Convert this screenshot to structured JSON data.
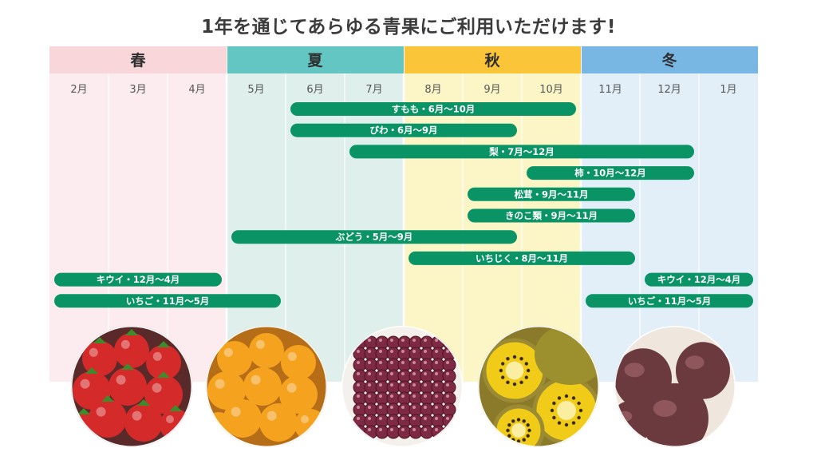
{
  "title": "1年を通じてあらゆる青果にご利用いただけます!",
  "chart_data": {
    "type": "gantt",
    "seasons": [
      {
        "name": "春",
        "months": [
          "2月",
          "3月",
          "4月"
        ],
        "header_color": "#f8d6d9",
        "column_color": "#fdecef"
      },
      {
        "name": "夏",
        "months": [
          "5月",
          "6月",
          "7月"
        ],
        "header_color": "#63c6c3",
        "column_color": "#dfefec"
      },
      {
        "name": "秋",
        "months": [
          "8月",
          "9月",
          "10月"
        ],
        "header_color": "#fbc53a",
        "column_color": "#fcf5c6"
      },
      {
        "name": "冬",
        "months": [
          "11月",
          "12月",
          "1月"
        ],
        "header_color": "#78b7e4",
        "column_color": "#e2eff9"
      }
    ],
    "bar_color": "#0a9466",
    "bars": [
      {
        "label": "すもも・6月〜10月",
        "start": "6月",
        "end": "10月"
      },
      {
        "label": "びわ・6月〜9月",
        "start": "6月",
        "end": "9月"
      },
      {
        "label": "梨・7月〜12月",
        "start": "7月",
        "end": "12月"
      },
      {
        "label": "柿・10月〜12月",
        "start": "10月",
        "end": "12月"
      },
      {
        "label": "松茸・9月〜11月",
        "start": "9月",
        "end": "11月"
      },
      {
        "label": "きのこ類・9月〜11月",
        "start": "9月",
        "end": "11月"
      },
      {
        "label": "ぶどう・5月〜9月",
        "start": "5月",
        "end": "9月"
      },
      {
        "label": "いちじく・8月〜11月",
        "start": "8月",
        "end": "11月"
      },
      {
        "label": "キウイ・12月〜4月",
        "start": "2月",
        "end": "4月"
      },
      {
        "label": "いちご・11月〜5月",
        "start": "2月",
        "end": "5月"
      },
      {
        "label": "キウイ・12月〜4月",
        "start": "12月",
        "end": "1月"
      },
      {
        "label": "いちご・11月〜5月",
        "start": "11月",
        "end": "1月"
      }
    ]
  },
  "fruit_photos": [
    {
      "icon": "strawberry-photo",
      "color": "#d42a2a"
    },
    {
      "icon": "loquat-photo",
      "color": "#f5a21f"
    },
    {
      "icon": "grape-photo",
      "color": "#7e2a45"
    },
    {
      "icon": "kiwi-photo",
      "color": "#e8c413"
    },
    {
      "icon": "fig-photo",
      "color": "#6b3a3f"
    }
  ]
}
